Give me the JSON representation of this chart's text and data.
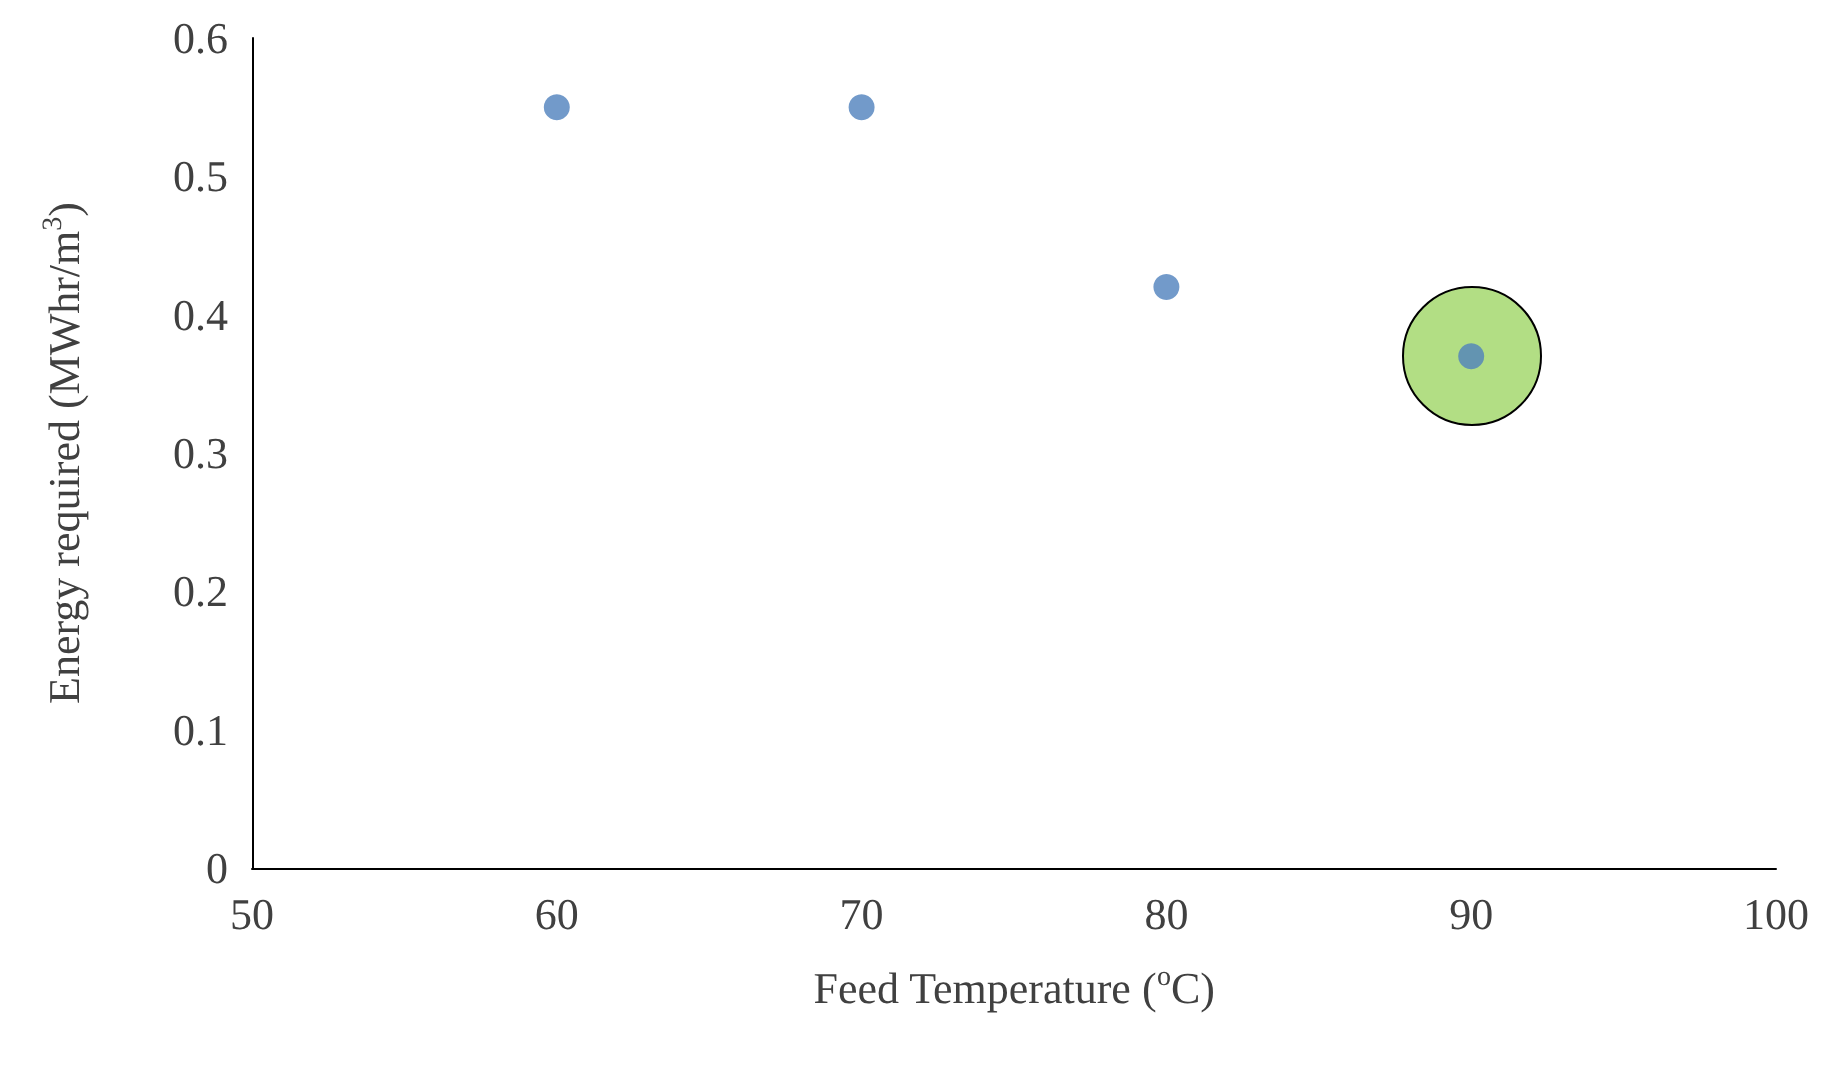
{
  "chart_data": {
    "type": "scatter",
    "xlabel": "Feed Temperature ($^{o}$C)",
    "ylabel": "Energy required (MWhr/m$^{3}$)",
    "x": [
      60,
      70,
      80,
      90
    ],
    "series": [
      {
        "color": "#4f81bd",
        "values": [
          0.55,
          0.55,
          0.42,
          0.37
        ]
      }
    ],
    "xlim": [
      50,
      100
    ],
    "xticks": [
      50,
      60,
      70,
      80,
      90,
      100
    ],
    "ylim": [
      0,
      0.6
    ],
    "yticks": [
      0,
      0.1,
      0.2,
      0.3,
      0.4,
      0.5,
      0.6
    ],
    "grid": false,
    "marker": "circle"
  }
}
